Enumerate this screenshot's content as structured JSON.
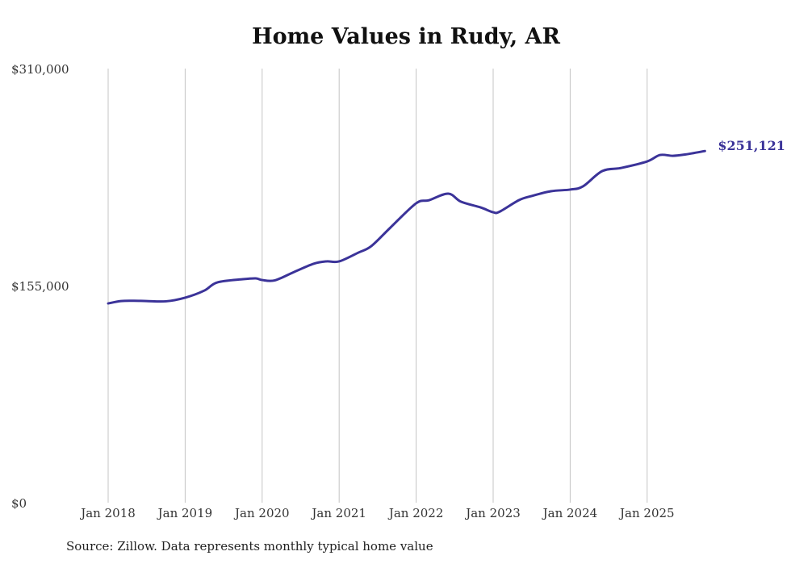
{
  "chart_data": {
    "type": "line",
    "title": "Home Values in Rudy, AR",
    "xlabel": "",
    "ylabel": "",
    "ylim": [
      0,
      310000
    ],
    "y_ticks": [
      {
        "value": 0,
        "label": "$0"
      },
      {
        "value": 155000,
        "label": "$155,000"
      },
      {
        "value": 310000,
        "label": "$310,000"
      }
    ],
    "x_ticks": [
      {
        "month": 0,
        "label": "Jan 2018"
      },
      {
        "month": 12,
        "label": "Jan 2019"
      },
      {
        "month": 24,
        "label": "Jan 2020"
      },
      {
        "month": 36,
        "label": "Jan 2021"
      },
      {
        "month": 48,
        "label": "Jan 2022"
      },
      {
        "month": 60,
        "label": "Jan 2023"
      },
      {
        "month": 72,
        "label": "Jan 2024"
      },
      {
        "month": 84,
        "label": "Jan 2025"
      }
    ],
    "grid": "vertical",
    "series": [
      {
        "name": "Typical home value",
        "color": "#3b3399",
        "x_months_since_jan_2018": [
          0,
          2,
          4,
          6,
          9,
          12,
          15,
          17,
          21,
          23,
          24,
          26,
          29,
          32,
          34,
          36,
          39,
          41,
          44,
          48,
          50,
          53,
          55,
          58,
          60,
          61,
          64,
          66,
          69,
          72,
          74,
          77,
          80,
          84,
          86,
          88,
          90,
          93
        ],
        "values": [
          142300,
          144000,
          144200,
          144000,
          143800,
          146400,
          151500,
          157300,
          159600,
          160200,
          159000,
          158800,
          164800,
          170600,
          172300,
          172300,
          178600,
          183200,
          196500,
          213800,
          216000,
          220700,
          214900,
          210900,
          207400,
          207800,
          216000,
          219000,
          222400,
          223600,
          225900,
          236800,
          239100,
          243700,
          248300,
          247700,
          248700,
          251121
        ]
      }
    ],
    "end_label": "$251,121"
  },
  "source_note": "Source: Zillow. Data represents monthly typical home value"
}
